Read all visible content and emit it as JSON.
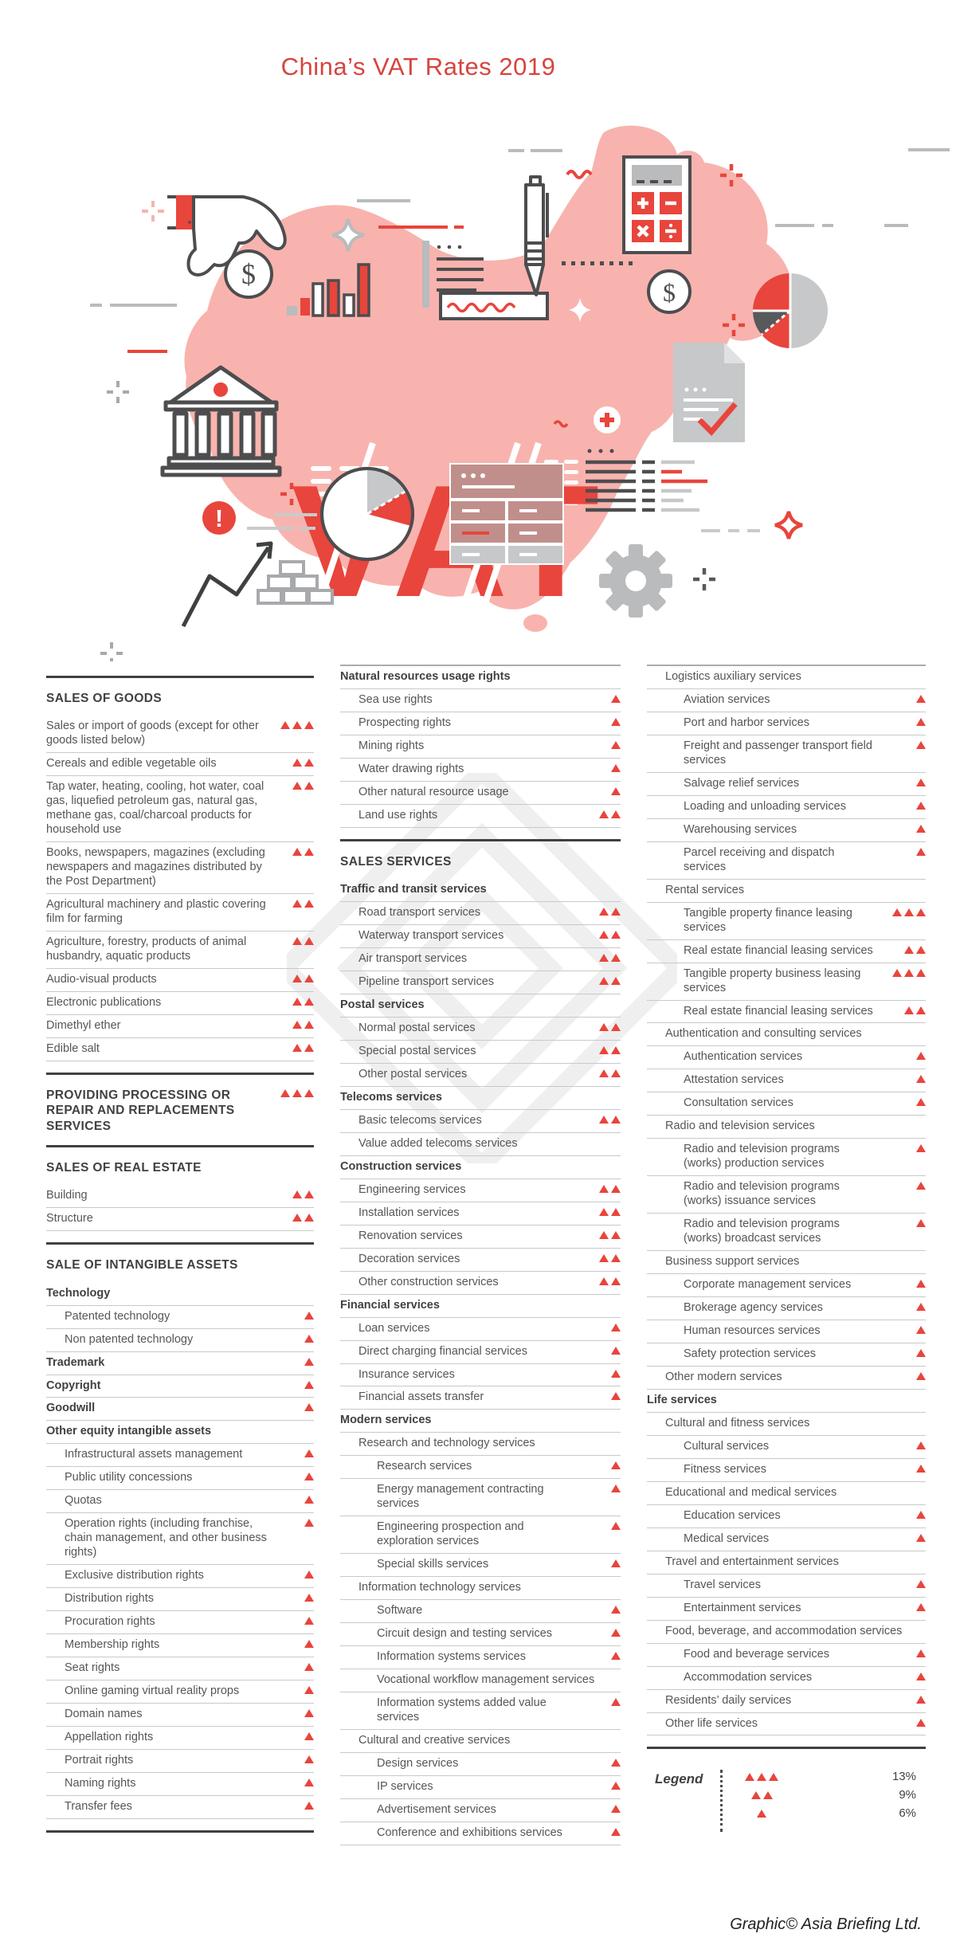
{
  "title": "China’s VAT Rates 2019",
  "illustration": {
    "vat_text": "VAT",
    "icons": [
      "china-map",
      "hainan-island",
      "vat-wordmark",
      "hand-coin-icon",
      "dollar-coin-icon",
      "bar-chart-icon",
      "document-lines-icon",
      "signature-box-icon",
      "pen-icon",
      "calculator-icon",
      "quarter-pie-chart-icon",
      "bank-icon",
      "exclamation-icon",
      "growth-arrow-icon",
      "pie-chart-icon",
      "bricks-icon",
      "drawer-cabinet-icon",
      "document-check-icon",
      "notes-lines-icon",
      "gear-icon",
      "plus-circle-icon",
      "sparkle-icon",
      "crosshair-icon",
      "wave-squiggle-icon",
      "dotted-line-icon"
    ]
  },
  "colors": {
    "accent_red": "#e8453c",
    "map_pink": "#f8b3ae",
    "dark": "#414042",
    "text_gray": "#55565a",
    "icon_gray": "#b9bbbd",
    "line_gray": "#c8c9cb"
  },
  "legend": {
    "label": "Legend",
    "rows": [
      {
        "triangles": 3,
        "rate": "13%"
      },
      {
        "triangles": 2,
        "rate": "9%"
      },
      {
        "triangles": 1,
        "rate": "6%"
      }
    ]
  },
  "credit": "Graphic© Asia Briefing Ltd.",
  "columns": [
    {
      "blocks": [
        {
          "type": "rule"
        },
        {
          "type": "header",
          "text": "SALES OF GOODS"
        },
        {
          "type": "row",
          "text": "Sales or import of goods (except for other goods listed below)",
          "lv": 0,
          "tri": 3
        },
        {
          "type": "row",
          "text": "Cereals and edible vegetable oils",
          "lv": 0,
          "tri": 2
        },
        {
          "type": "row",
          "text": "Tap water, heating, cooling, hot water, coal gas, liquefied petroleum gas, natural gas, methane gas, coal/charcoal products for household use",
          "lv": 0,
          "tri": 2
        },
        {
          "type": "row",
          "text": "Books, newspapers, magazines (excluding newspapers and magazines distributed by the Post Department)",
          "lv": 0,
          "tri": 2
        },
        {
          "type": "row",
          "text": "Agricultural machinery and plastic covering film for farming",
          "lv": 0,
          "tri": 2
        },
        {
          "type": "row",
          "text": "Agriculture, forestry, products of animal husbandry, aquatic products",
          "lv": 0,
          "tri": 2
        },
        {
          "type": "row",
          "text": "Audio-visual products",
          "lv": 0,
          "tri": 2
        },
        {
          "type": "row",
          "text": "Electronic publications",
          "lv": 0,
          "tri": 2
        },
        {
          "type": "row",
          "text": "Dimethyl ether",
          "lv": 0,
          "tri": 2
        },
        {
          "type": "row",
          "text": "Edible salt",
          "lv": 0,
          "tri": 2
        },
        {
          "type": "rule"
        },
        {
          "type": "header",
          "text": "PROVIDING PROCESSING OR REPAIR AND REPLACEMENTS SERVICES",
          "tri": 3
        },
        {
          "type": "rule"
        },
        {
          "type": "header",
          "text": "SALES OF REAL ESTATE"
        },
        {
          "type": "row",
          "text": "Building",
          "lv": 0,
          "tri": 2
        },
        {
          "type": "row",
          "text": "Structure",
          "lv": 0,
          "tri": 2
        },
        {
          "type": "rule"
        },
        {
          "type": "header",
          "text": "SALE OF INTANGIBLE ASSETS"
        },
        {
          "type": "row",
          "text": "Technology",
          "lv": 0,
          "bold": true,
          "tri": 0
        },
        {
          "type": "row",
          "text": "Patented technology",
          "lv": 1,
          "tri": 1
        },
        {
          "type": "row",
          "text": "Non patented technology",
          "lv": 1,
          "tri": 1
        },
        {
          "type": "row",
          "text": "Trademark",
          "lv": 0,
          "bold": true,
          "tri": 1
        },
        {
          "type": "row",
          "text": "Copyright",
          "lv": 0,
          "bold": true,
          "tri": 1
        },
        {
          "type": "row",
          "text": "Goodwill",
          "lv": 0,
          "bold": true,
          "tri": 1
        },
        {
          "type": "row",
          "text": "Other equity intangible assets",
          "lv": 0,
          "bold": true,
          "tri": 0
        },
        {
          "type": "row",
          "text": "Infrastructural assets management",
          "lv": 1,
          "tri": 1
        },
        {
          "type": "row",
          "text": "Public utility concessions",
          "lv": 1,
          "tri": 1
        },
        {
          "type": "row",
          "text": "Quotas",
          "lv": 1,
          "tri": 1
        },
        {
          "type": "row",
          "text": "Operation rights (including franchise, chain management, and other business rights)",
          "lv": 1,
          "tri": 1
        },
        {
          "type": "row",
          "text": "Exclusive distribution rights",
          "lv": 1,
          "tri": 1
        },
        {
          "type": "row",
          "text": "Distribution rights",
          "lv": 1,
          "tri": 1
        },
        {
          "type": "row",
          "text": "Procuration rights",
          "lv": 1,
          "tri": 1
        },
        {
          "type": "row",
          "text": "Membership rights",
          "lv": 1,
          "tri": 1
        },
        {
          "type": "row",
          "text": "Seat rights",
          "lv": 1,
          "tri": 1
        },
        {
          "type": "row",
          "text": "Online gaming virtual reality props",
          "lv": 1,
          "tri": 1
        },
        {
          "type": "row",
          "text": "Domain names",
          "lv": 1,
          "tri": 1
        },
        {
          "type": "row",
          "text": "Appellation rights",
          "lv": 1,
          "tri": 1
        },
        {
          "type": "row",
          "text": "Portrait rights",
          "lv": 1,
          "tri": 1
        },
        {
          "type": "row",
          "text": "Naming rights",
          "lv": 1,
          "tri": 1
        },
        {
          "type": "row",
          "text": "Transfer fees",
          "lv": 1,
          "tri": 1
        },
        {
          "type": "rule"
        }
      ]
    },
    {
      "blocks": [
        {
          "type": "thinrule"
        },
        {
          "type": "row",
          "text": "Natural resources usage rights",
          "lv": 0,
          "bold": true,
          "tri": 0
        },
        {
          "type": "row",
          "text": "Sea use rights",
          "lv": 1,
          "tri": 1
        },
        {
          "type": "row",
          "text": "Prospecting rights",
          "lv": 1,
          "tri": 1
        },
        {
          "type": "row",
          "text": "Mining rights",
          "lv": 1,
          "tri": 1
        },
        {
          "type": "row",
          "text": "Water drawing rights",
          "lv": 1,
          "tri": 1
        },
        {
          "type": "row",
          "text": "Other natural resource usage",
          "lv": 1,
          "tri": 1
        },
        {
          "type": "row",
          "text": "Land use rights",
          "lv": 1,
          "tri": 2
        },
        {
          "type": "rule"
        },
        {
          "type": "header",
          "text": "SALES SERVICES"
        },
        {
          "type": "row",
          "text": "Traffic and transit services",
          "lv": 0,
          "bold": true,
          "tri": 0
        },
        {
          "type": "row",
          "text": "Road transport services",
          "lv": 1,
          "tri": 2
        },
        {
          "type": "row",
          "text": "Waterway transport services",
          "lv": 1,
          "tri": 2
        },
        {
          "type": "row",
          "text": "Air transport services",
          "lv": 1,
          "tri": 2
        },
        {
          "type": "row",
          "text": "Pipeline transport services",
          "lv": 1,
          "tri": 2
        },
        {
          "type": "row",
          "text": "Postal services",
          "lv": 0,
          "bold": true,
          "tri": 0
        },
        {
          "type": "row",
          "text": "Normal postal services",
          "lv": 1,
          "tri": 2
        },
        {
          "type": "row",
          "text": "Special postal services",
          "lv": 1,
          "tri": 2
        },
        {
          "type": "row",
          "text": "Other postal services",
          "lv": 1,
          "tri": 2
        },
        {
          "type": "row",
          "text": "Telecoms services",
          "lv": 0,
          "bold": true,
          "tri": 0
        },
        {
          "type": "row",
          "text": "Basic telecoms services",
          "lv": 1,
          "tri": 2
        },
        {
          "type": "row",
          "text": "Value added telecoms services",
          "lv": 1,
          "tri": 0
        },
        {
          "type": "row",
          "text": "Construction services",
          "lv": 0,
          "bold": true,
          "tri": 0
        },
        {
          "type": "row",
          "text": "Engineering services",
          "lv": 1,
          "tri": 2
        },
        {
          "type": "row",
          "text": "Installation services",
          "lv": 1,
          "tri": 2
        },
        {
          "type": "row",
          "text": "Renovation services",
          "lv": 1,
          "tri": 2
        },
        {
          "type": "row",
          "text": "Decoration services",
          "lv": 1,
          "tri": 2
        },
        {
          "type": "row",
          "text": "Other construction services",
          "lv": 1,
          "tri": 2
        },
        {
          "type": "row",
          "text": "Financial services",
          "lv": 0,
          "bold": true,
          "tri": 0
        },
        {
          "type": "row",
          "text": "Loan services",
          "lv": 1,
          "tri": 1
        },
        {
          "type": "row",
          "text": "Direct charging financial services",
          "lv": 1,
          "tri": 1
        },
        {
          "type": "row",
          "text": "Insurance services",
          "lv": 1,
          "tri": 1
        },
        {
          "type": "row",
          "text": "Financial assets transfer",
          "lv": 1,
          "tri": 1
        },
        {
          "type": "row",
          "text": "Modern services",
          "lv": 0,
          "bold": true,
          "tri": 0
        },
        {
          "type": "row",
          "text": "Research and technology services",
          "lv": 1,
          "tri": 0
        },
        {
          "type": "row",
          "text": "Research services",
          "lv": 2,
          "tri": 1
        },
        {
          "type": "row",
          "text": "Energy management contracting services",
          "lv": 2,
          "tri": 1
        },
        {
          "type": "row",
          "text": "Engineering prospection and exploration services",
          "lv": 2,
          "tri": 1
        },
        {
          "type": "row",
          "text": "Special skills services",
          "lv": 2,
          "tri": 1
        },
        {
          "type": "row",
          "text": "Information technology services",
          "lv": 1,
          "tri": 0
        },
        {
          "type": "row",
          "text": "Software",
          "lv": 2,
          "tri": 1
        },
        {
          "type": "row",
          "text": "Circuit design and testing services",
          "lv": 2,
          "tri": 1
        },
        {
          "type": "row",
          "text": "Information systems services",
          "lv": 2,
          "tri": 1
        },
        {
          "type": "row",
          "text": "Vocational workflow management services",
          "lv": 2,
          "tri": 0
        },
        {
          "type": "row",
          "text": "Information systems added value services",
          "lv": 2,
          "tri": 1
        },
        {
          "type": "row",
          "text": "Cultural and creative services",
          "lv": 1,
          "tri": 0
        },
        {
          "type": "row",
          "text": "Design services",
          "lv": 2,
          "tri": 1
        },
        {
          "type": "row",
          "text": "IP services",
          "lv": 2,
          "tri": 1
        },
        {
          "type": "row",
          "text": "Advertisement services",
          "lv": 2,
          "tri": 1
        },
        {
          "type": "row",
          "text": "Conference and exhibitions services",
          "lv": 2,
          "tri": 1
        }
      ]
    },
    {
      "blocks": [
        {
          "type": "thinrule"
        },
        {
          "type": "row",
          "text": "Logistics auxiliary services",
          "lv": 1,
          "tri": 0
        },
        {
          "type": "row",
          "text": "Aviation services",
          "lv": 2,
          "tri": 1
        },
        {
          "type": "row",
          "text": "Port and harbor services",
          "lv": 2,
          "tri": 1
        },
        {
          "type": "row",
          "text": "Freight and passenger transport field services",
          "lv": 2,
          "tri": 1
        },
        {
          "type": "row",
          "text": "Salvage relief services",
          "lv": 2,
          "tri": 1
        },
        {
          "type": "row",
          "text": "Loading and unloading services",
          "lv": 2,
          "tri": 1
        },
        {
          "type": "row",
          "text": "Warehousing services",
          "lv": 2,
          "tri": 1
        },
        {
          "type": "row",
          "text": "Parcel receiving and dispatch services",
          "lv": 2,
          "tri": 1
        },
        {
          "type": "row",
          "text": "Rental services",
          "lv": 1,
          "tri": 0
        },
        {
          "type": "row",
          "text": "Tangible property finance leasing services",
          "lv": 2,
          "tri": 3
        },
        {
          "type": "row",
          "text": "Real estate financial leasing services",
          "lv": 2,
          "tri": 2
        },
        {
          "type": "row",
          "text": "Tangible property business leasing services",
          "lv": 2,
          "tri": 3
        },
        {
          "type": "row",
          "text": "Real estate financial leasing services",
          "lv": 2,
          "tri": 2
        },
        {
          "type": "row",
          "text": "Authentication and consulting services",
          "lv": 1,
          "tri": 0
        },
        {
          "type": "row",
          "text": "Authentication services",
          "lv": 2,
          "tri": 1
        },
        {
          "type": "row",
          "text": "Attestation services",
          "lv": 2,
          "tri": 1
        },
        {
          "type": "row",
          "text": "Consultation services",
          "lv": 2,
          "tri": 1
        },
        {
          "type": "row",
          "text": "Radio and television services",
          "lv": 1,
          "tri": 0
        },
        {
          "type": "row",
          "text": "Radio and television programs (works) production services",
          "lv": 2,
          "tri": 1
        },
        {
          "type": "row",
          "text": "Radio and television programs (works) issuance services",
          "lv": 2,
          "tri": 1
        },
        {
          "type": "row",
          "text": "Radio and television programs (works) broadcast services",
          "lv": 2,
          "tri": 1
        },
        {
          "type": "row",
          "text": "Business support services",
          "lv": 1,
          "tri": 0
        },
        {
          "type": "row",
          "text": "Corporate management services",
          "lv": 2,
          "tri": 1
        },
        {
          "type": "row",
          "text": "Brokerage agency services",
          "lv": 2,
          "tri": 1
        },
        {
          "type": "row",
          "text": "Human resources services",
          "lv": 2,
          "tri": 1
        },
        {
          "type": "row",
          "text": "Safety protection services",
          "lv": 2,
          "tri": 1
        },
        {
          "type": "row",
          "text": "Other modern services",
          "lv": 1,
          "tri": 1
        },
        {
          "type": "row",
          "text": "Life services",
          "lv": 0,
          "bold": true,
          "tri": 0
        },
        {
          "type": "row",
          "text": "Cultural and fitness services",
          "lv": 1,
          "tri": 0
        },
        {
          "type": "row",
          "text": "Cultural services",
          "lv": 2,
          "tri": 1
        },
        {
          "type": "row",
          "text": "Fitness services",
          "lv": 2,
          "tri": 1
        },
        {
          "type": "row",
          "text": "Educational and medical services",
          "lv": 1,
          "tri": 0
        },
        {
          "type": "row",
          "text": "Education services",
          "lv": 2,
          "tri": 1
        },
        {
          "type": "row",
          "text": "Medical services",
          "lv": 2,
          "tri": 1
        },
        {
          "type": "row",
          "text": "Travel and entertainment services",
          "lv": 1,
          "tri": 0
        },
        {
          "type": "row",
          "text": "Travel services",
          "lv": 2,
          "tri": 1
        },
        {
          "type": "row",
          "text": "Entertainment services",
          "lv": 2,
          "tri": 1
        },
        {
          "type": "row",
          "text": "Food, beverage, and accommodation services",
          "lv": 1,
          "tri": 0
        },
        {
          "type": "row",
          "text": "Food and beverage services",
          "lv": 2,
          "tri": 1
        },
        {
          "type": "row",
          "text": "Accommodation services",
          "lv": 2,
          "tri": 1
        },
        {
          "type": "row",
          "text": "Residents’ daily services",
          "lv": 1,
          "tri": 1
        },
        {
          "type": "row",
          "text": "Other life services",
          "lv": 1,
          "tri": 1
        },
        {
          "type": "rule"
        }
      ]
    }
  ]
}
